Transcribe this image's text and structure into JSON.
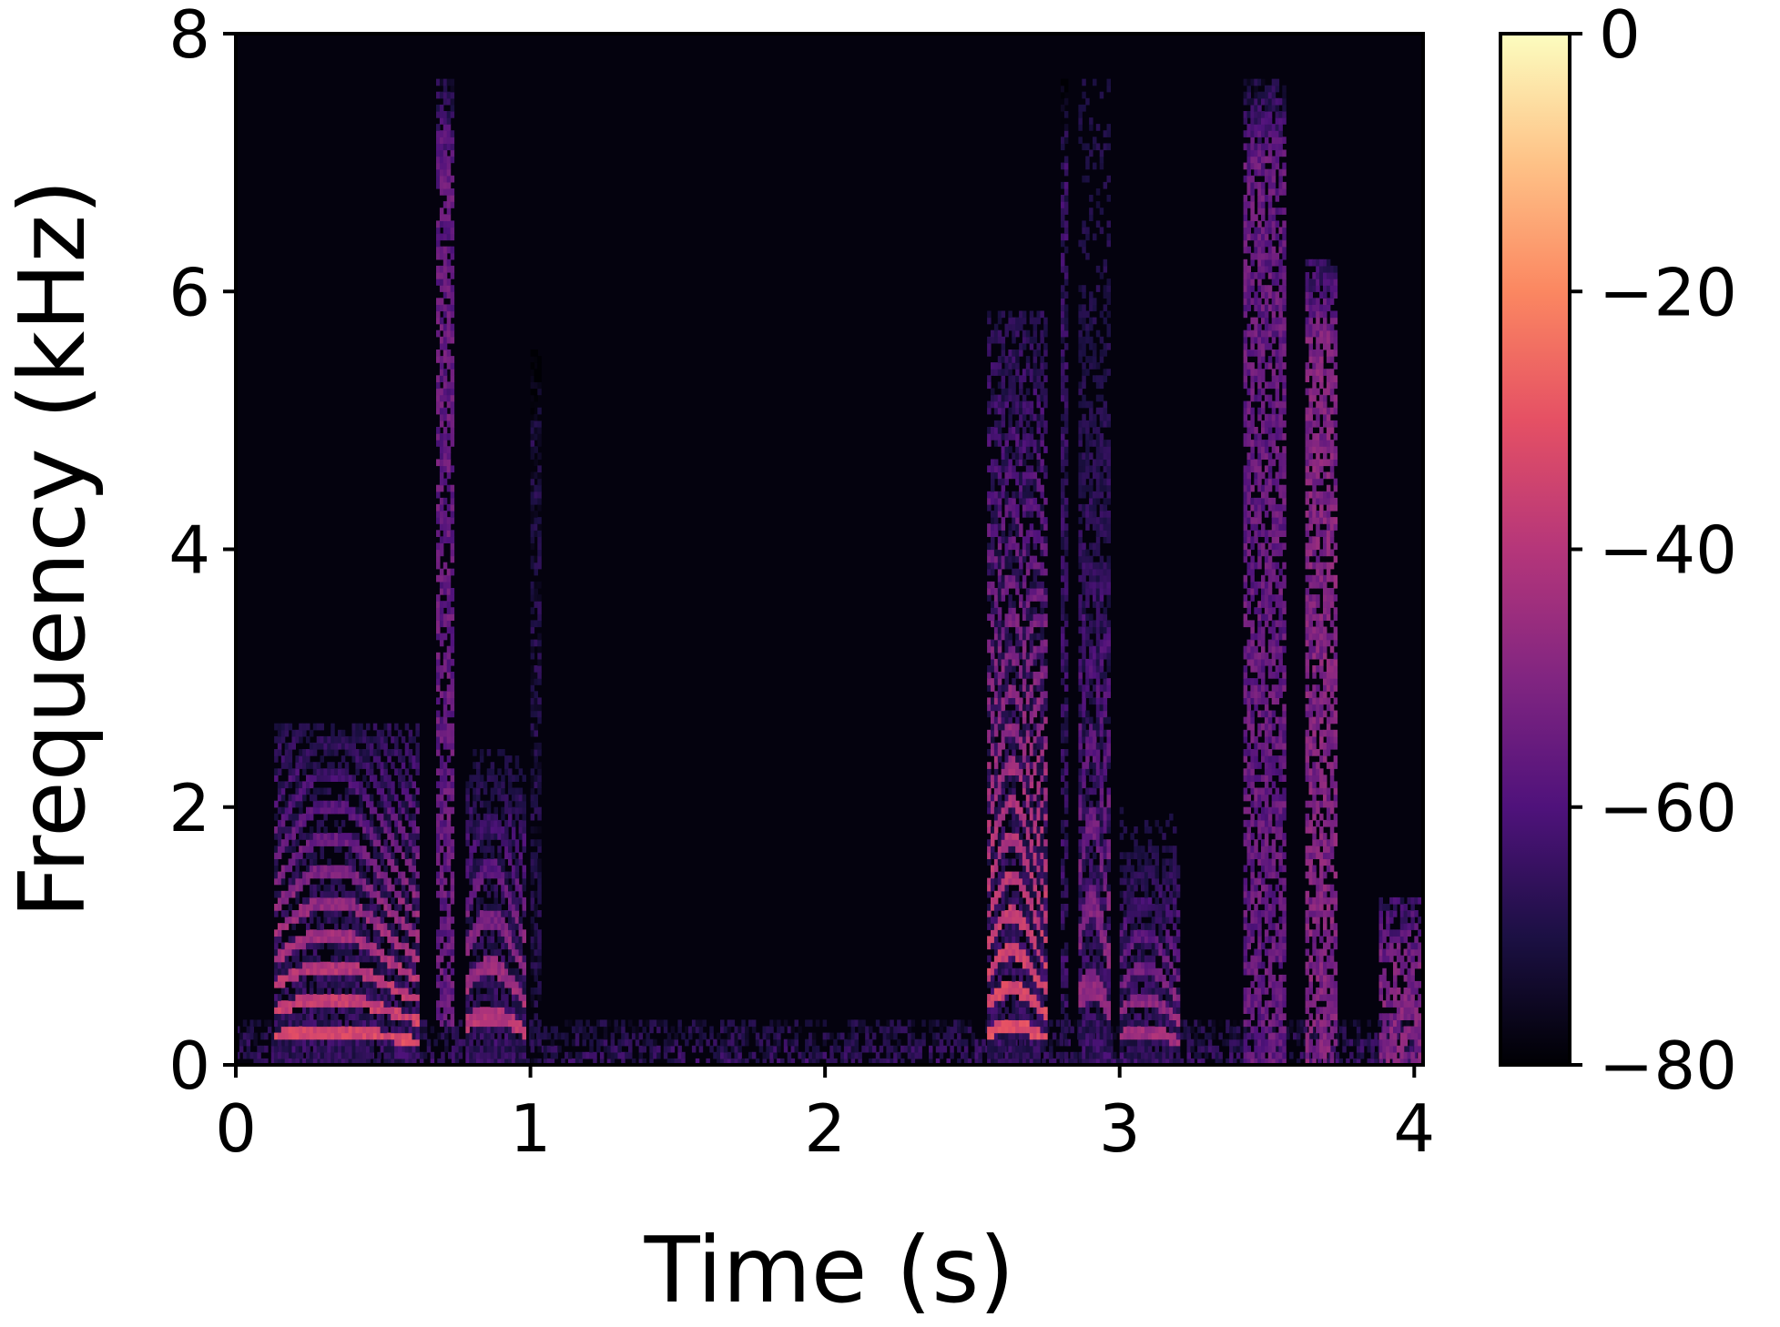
{
  "chart_data": {
    "type": "heatmap",
    "subtype": "spectrogram",
    "title": "",
    "xlabel": "Time (s)",
    "ylabel": "Frequency (kHz)",
    "xlim": [
      0,
      4.03
    ],
    "ylim": [
      0,
      8
    ],
    "xticks": [
      0,
      1,
      2,
      3,
      4
    ],
    "xtick_labels": [
      "0",
      "1",
      "2",
      "3",
      "4"
    ],
    "yticks": [
      0,
      2,
      4,
      6,
      8
    ],
    "ytick_labels": [
      "0",
      "2",
      "4",
      "6",
      "8"
    ],
    "colorbar": {
      "colormap": "magma",
      "range": [
        -80,
        0
      ],
      "ticks": [
        0,
        -20,
        -40,
        -60,
        -80
      ],
      "tick_labels": [
        "0",
        "−20",
        "−40",
        "−60",
        "−80"
      ]
    },
    "grid": false,
    "segments": [
      {
        "name": "voiced",
        "t_start": 0.13,
        "t_end": 0.62,
        "f0_khz": 0.2,
        "harmonics_to_khz": 2.6,
        "level_db": -30
      },
      {
        "name": "fricative",
        "t_start": 0.68,
        "t_end": 0.74,
        "f_low_khz": 0.3,
        "f_high_khz": 7.6,
        "level_db": -50
      },
      {
        "name": "voiced",
        "t_start": 0.78,
        "t_end": 0.98,
        "f0_khz": 0.3,
        "harmonics_to_khz": 2.4,
        "level_db": -35
      },
      {
        "name": "burst",
        "t_start": 1.0,
        "t_end": 1.03,
        "f_low_khz": 0.0,
        "f_high_khz": 5.5,
        "level_db": -65
      },
      {
        "name": "voiced",
        "t_start": 2.55,
        "t_end": 2.75,
        "f0_khz": 0.23,
        "harmonics_to_khz": 5.8,
        "level_db": -30
      },
      {
        "name": "fricative",
        "t_start": 2.8,
        "t_end": 2.82,
        "f_low_khz": 0.0,
        "f_high_khz": 7.6,
        "level_db": -60
      },
      {
        "name": "voiced",
        "t_start": 2.86,
        "t_end": 2.96,
        "f0_khz": 0.5,
        "harmonics_to_khz": 7.6,
        "level_db": -45
      },
      {
        "name": "voiced",
        "t_start": 3.0,
        "t_end": 3.2,
        "f0_khz": 0.2,
        "harmonics_to_khz": 2.0,
        "level_db": -40
      },
      {
        "name": "fricative",
        "t_start": 3.42,
        "t_end": 3.56,
        "f_low_khz": 0.0,
        "f_high_khz": 7.6,
        "level_db": -50
      },
      {
        "name": "fricative",
        "t_start": 3.63,
        "t_end": 3.73,
        "f_low_khz": 0.0,
        "f_high_khz": 6.2,
        "level_db": -45
      },
      {
        "name": "noise",
        "t_start": 3.88,
        "t_end": 4.02,
        "f_low_khz": 0.0,
        "f_high_khz": 1.3,
        "level_db": -45
      }
    ]
  }
}
